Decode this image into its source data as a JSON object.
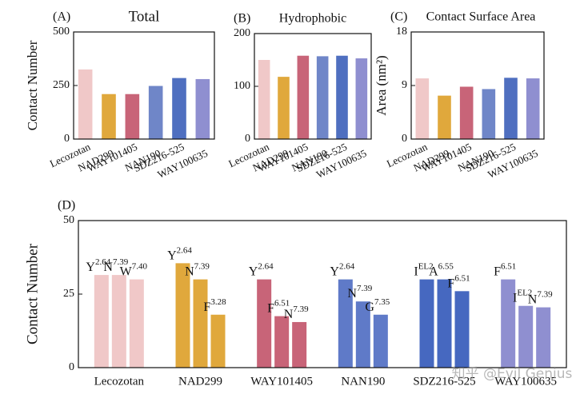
{
  "chart_data": [
    {
      "type": "bar",
      "panel_label": "(A)",
      "title": "Total",
      "ylabel": "Contact Number",
      "categories": [
        "Lecozotan",
        "NAD299",
        "WAY101405",
        "NAN190",
        "SDZ216-525",
        "WAY100635"
      ],
      "values": [
        325,
        210,
        210,
        248,
        285,
        280
      ],
      "colors": [
        "#f0c8c8",
        "#e0a83c",
        "#c86478",
        "#6f86c8",
        "#4f6fc0",
        "#8f8fd0"
      ],
      "ylim": [
        0,
        500
      ],
      "yticks": [
        0,
        250,
        500
      ]
    },
    {
      "type": "bar",
      "panel_label": "(B)",
      "title": "Hydrophobic",
      "categories": [
        "Lecozotan",
        "NAD299",
        "WAY101405",
        "NAN190",
        "SDZ216-525",
        "WAY100635"
      ],
      "values": [
        150,
        118,
        158,
        157,
        158,
        153
      ],
      "colors": [
        "#f0c8c8",
        "#e0a83c",
        "#c86478",
        "#6f86c8",
        "#4f6fc0",
        "#8f8fd0"
      ],
      "ylim": [
        0,
        200
      ],
      "yticks": [
        0,
        100,
        200
      ]
    },
    {
      "type": "bar",
      "panel_label": "(C)",
      "title": "Contact Surface Area",
      "ylabel": "Area (nm²)",
      "categories": [
        "Lecozotan",
        "NAD299",
        "WAY101405",
        "NAN190",
        "SDZ216-525",
        "WAY100635"
      ],
      "values": [
        10.2,
        7.3,
        8.8,
        8.4,
        10.3,
        10.2
      ],
      "colors": [
        "#f0c8c8",
        "#e0a83c",
        "#c86478",
        "#6f86c8",
        "#4f6fc0",
        "#8f8fd0"
      ],
      "ylim": [
        0,
        18
      ],
      "yticks": [
        0,
        9,
        18
      ]
    },
    {
      "type": "bar_groups",
      "panel_label": "(D)",
      "ylabel": "Contact Number",
      "ylim": [
        0,
        50
      ],
      "yticks": [
        0,
        25,
        50
      ],
      "groups": [
        {
          "name": "Lecozotan",
          "color": "#f0c8c8",
          "bars": [
            {
              "residue": "Y",
              "site": "2.64",
              "value": 31.5
            },
            {
              "residue": "N",
              "site": "7.39",
              "value": 31.5
            },
            {
              "residue": "W",
              "site": "7.40",
              "value": 30
            }
          ]
        },
        {
          "name": "NAD299",
          "color": "#e0a83c",
          "bars": [
            {
              "residue": "Y",
              "site": "2.64",
              "value": 35.5
            },
            {
              "residue": "N",
              "site": "7.39",
              "value": 30
            },
            {
              "residue": "F",
              "site": "3.28",
              "value": 18
            }
          ]
        },
        {
          "name": "WAY101405",
          "color": "#c86478",
          "bars": [
            {
              "residue": "Y",
              "site": "2.64",
              "value": 30
            },
            {
              "residue": "F",
              "site": "6.51",
              "value": 17.5
            },
            {
              "residue": "N",
              "site": "7.39",
              "value": 15.5
            }
          ]
        },
        {
          "name": "NAN190",
          "color": "#5f7ac8",
          "bars": [
            {
              "residue": "Y",
              "site": "2.64",
              "value": 30
            },
            {
              "residue": "N",
              "site": "7.39",
              "value": 22.5
            },
            {
              "residue": "G",
              "site": "7.35",
              "value": 18
            }
          ]
        },
        {
          "name": "SDZ216-525",
          "color": "#4668c0",
          "bars": [
            {
              "residue": "I",
              "site": "EL2",
              "value": 30
            },
            {
              "residue": "A",
              "site": "6.55",
              "value": 30
            },
            {
              "residue": "F",
              "site": "6.51",
              "value": 26
            }
          ]
        },
        {
          "name": "WAY100635",
          "color": "#8f8fd0",
          "bars": [
            {
              "residue": "F",
              "site": "6.51",
              "value": 30
            },
            {
              "residue": "I",
              "site": "EL2",
              "value": 21
            },
            {
              "residue": "N",
              "site": "7.39",
              "value": 20.5
            }
          ]
        }
      ]
    }
  ],
  "watermark": "知乎 @Evil Genius"
}
